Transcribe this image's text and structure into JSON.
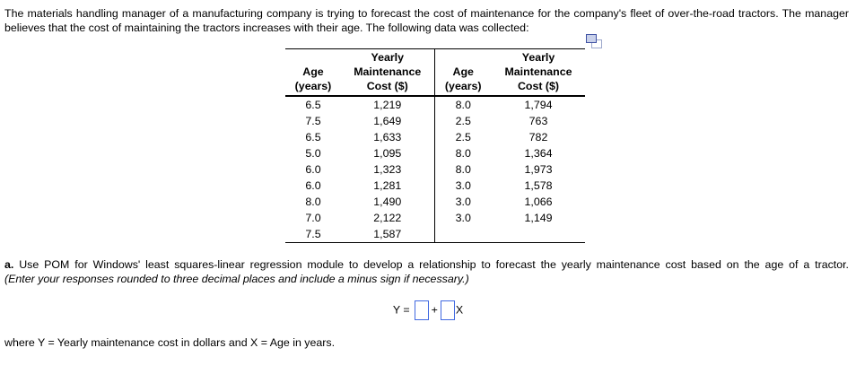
{
  "colors": {
    "input_border": "#4169E1",
    "icon_front_border": "#3f51a3",
    "icon_front_fill": "#c9d1ea",
    "icon_back_border": "#9ba7cb",
    "text": "#000000",
    "background": "#ffffff"
  },
  "intro": "The materials handling manager of a manufacturing company is trying to forecast the cost of maintenance for the company's fleet of over-the-road tractors. The manager believes that the cost of maintaining the tractors increases with their age. The following data was collected:",
  "icons": {
    "copy_table": "copy-table-icon"
  },
  "table": {
    "headers": [
      "Age\n(years)",
      "Yearly\nMaintenance\nCost ($)",
      "Age\n(years)",
      "Yearly\nMaintenance\nCost ($)"
    ],
    "rows": [
      [
        "6.5",
        "1,219",
        "8.0",
        "1,794"
      ],
      [
        "7.5",
        "1,649",
        "2.5",
        "763"
      ],
      [
        "6.5",
        "1,633",
        "2.5",
        "782"
      ],
      [
        "5.0",
        "1,095",
        "8.0",
        "1,364"
      ],
      [
        "6.0",
        "1,323",
        "8.0",
        "1,973"
      ],
      [
        "6.0",
        "1,281",
        "3.0",
        "1,578"
      ],
      [
        "8.0",
        "1,490",
        "3.0",
        "1,066"
      ],
      [
        "7.0",
        "2,122",
        "3.0",
        "1,149"
      ],
      [
        "7.5",
        "1,587",
        "",
        ""
      ]
    ]
  },
  "question_a": {
    "label": "a.",
    "text": " Use POM for Windows' least squares-linear regression module to develop a relationship to forecast the yearly maintenance cost based on the age of a tractor.",
    "instruction": "(Enter your responses rounded to three decimal places and include a minus sign if necessary.)"
  },
  "equation": {
    "lhs": "Y =",
    "operator": "+",
    "x_label": "X",
    "intercept_value": "",
    "slope_value": ""
  },
  "footnote": "where Y = Yearly maintenance cost in dollars and X = Age in years."
}
